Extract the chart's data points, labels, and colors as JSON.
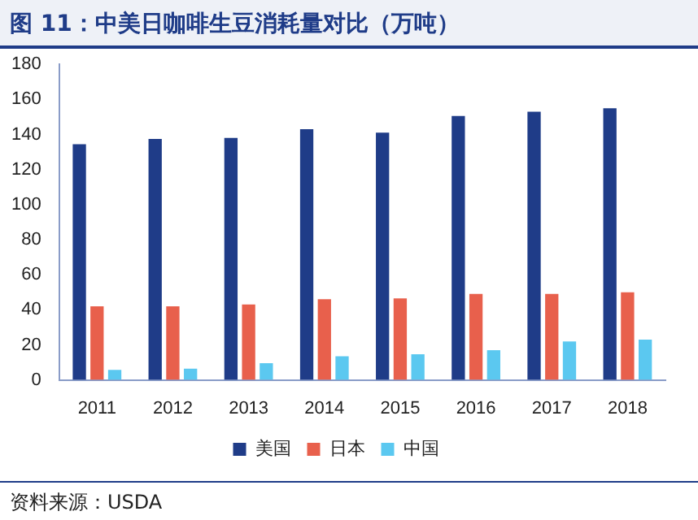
{
  "chart_data": {
    "type": "bar",
    "title": "图 11：中美日咖啡生豆消耗量对比（万吨）",
    "categories": [
      "2011",
      "2012",
      "2013",
      "2014",
      "2015",
      "2016",
      "2017",
      "2018"
    ],
    "series": [
      {
        "name": "美国",
        "color": "#1f3c88",
        "values": [
          134.5,
          137.5,
          138,
          143,
          141,
          150.5,
          153,
          155
        ]
      },
      {
        "name": "日本",
        "color": "#e8604c",
        "values": [
          42,
          42,
          43,
          46,
          46.5,
          49,
          49,
          50
        ]
      },
      {
        "name": "中国",
        "color": "#5bc8f0",
        "values": [
          5.7,
          6.4,
          9.6,
          13.5,
          14.6,
          17,
          22,
          23
        ]
      }
    ],
    "ylim": [
      0,
      180
    ],
    "yticks": [
      0,
      20,
      40,
      60,
      80,
      100,
      120,
      140,
      160,
      180
    ],
    "grid": false,
    "legend": "bottom",
    "annotations": [
      "资料来源：USDA"
    ]
  }
}
